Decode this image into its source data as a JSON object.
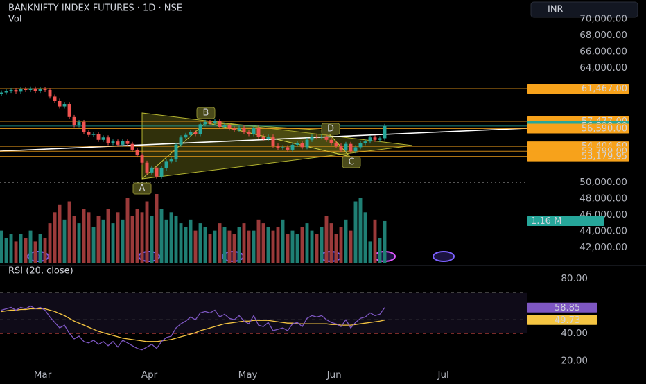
{
  "chart_data": {
    "type": "candlestick",
    "title": "BANKNIFTY INDEX FUTURES · 1D · NSE",
    "volume_title": "Vol",
    "currency": "INR",
    "up_color": "#26a69a",
    "down_color": "#ef5350",
    "xlim": [
      -0.29,
      108.29
    ],
    "xticks": [
      {
        "value": 8.5,
        "label": "Mar"
      },
      {
        "value": 30.5,
        "label": "Apr"
      },
      {
        "value": 50.8,
        "label": "May"
      },
      {
        "value": 68.6,
        "label": "Jun"
      },
      {
        "value": 91.1,
        "label": "Jul"
      }
    ],
    "ylim": [
      40060,
      72345
    ],
    "yticks": [
      {
        "value": 70000,
        "label": "70,000.00"
      },
      {
        "value": 68000,
        "label": "68,000.00"
      },
      {
        "value": 66000,
        "label": "66,000.00"
      },
      {
        "value": 64000,
        "label": "64,000.00"
      },
      {
        "value": 50000,
        "label": "50,000.00"
      },
      {
        "value": 48000,
        "label": "48,000.00"
      },
      {
        "value": 46000,
        "label": "46,000.00"
      },
      {
        "value": 44000,
        "label": "44,000.00"
      },
      {
        "value": 42000,
        "label": "42,000.00"
      }
    ],
    "levels": [
      {
        "value": 61467,
        "label": "61,467.00",
        "color": "#f7a21b"
      },
      {
        "value": 57477,
        "label": "57,477.00",
        "color": "#f7a21b"
      },
      {
        "value": 56898,
        "label": "56,898.00",
        "color": "#26a69a"
      },
      {
        "value": 56590,
        "label": "56,590.00",
        "color": "#f7a21b"
      },
      {
        "value": 54404.6,
        "label": "54,404.60",
        "color": "#f7a21b"
      },
      {
        "value": 53799,
        "label": "53,799.00",
        "color": "#f7a21b"
      },
      {
        "value": 53179.95,
        "label": "53,179.95",
        "color": "#f7a21b"
      }
    ],
    "pattern_labels": [
      "A",
      "B",
      "C",
      "D"
    ],
    "open": [
      60800,
      61000,
      61200,
      61300,
      61100,
      61400,
      61300,
      61500,
      61200,
      61400,
      61300,
      60500,
      60000,
      59300,
      59600,
      58000,
      57000,
      57400,
      56200,
      55800,
      55900,
      55200,
      55500,
      54800,
      55000,
      54600,
      55100,
      54700,
      54000,
      53300,
      52400,
      51200,
      51800,
      50700,
      51700,
      52600,
      52800,
      54600,
      55500,
      55800,
      56200,
      55900,
      57100,
      57400,
      57300,
      57500,
      56800,
      57000,
      56600,
      56400,
      56700,
      56200,
      55900,
      56700,
      55600,
      55300,
      55600,
      54500,
      54200,
      54300,
      54000,
      54600,
      54800,
      54300,
      55200,
      55600,
      55500,
      55600,
      55200,
      54800,
      54500,
      54000,
      54700,
      53800,
      54300,
      54800,
      55000,
      55500,
      55200,
      55400
    ],
    "high": [
      61250,
      61450,
      61550,
      61550,
      61650,
      61650,
      61750,
      61750,
      61650,
      61650,
      61550,
      60750,
      60250,
      59850,
      59850,
      58250,
      57650,
      57650,
      56450,
      56150,
      56150,
      55750,
      55750,
      55250,
      55250,
      55350,
      55350,
      54950,
      54250,
      53550,
      52650,
      52050,
      52050,
      51950,
      52850,
      53050,
      54850,
      55750,
      56050,
      56450,
      56450,
      57350,
      57650,
      57650,
      57750,
      57750,
      57250,
      57250,
      56850,
      56950,
      56950,
      56450,
      56950,
      56950,
      55850,
      55850,
      55850,
      54750,
      54550,
      54550,
      54850,
      55050,
      55050,
      55450,
      55850,
      55850,
      55850,
      55850,
      55450,
      55050,
      54750,
      54950,
      54950,
      54550,
      55050,
      55250,
      55750,
      55750,
      55650,
      57150
    ],
    "low": [
      60550,
      60750,
      60950,
      60850,
      60850,
      61050,
      61050,
      60950,
      60950,
      61050,
      60250,
      59750,
      59050,
      59050,
      57750,
      56750,
      56750,
      55950,
      55550,
      55550,
      54950,
      54950,
      54550,
      54550,
      54350,
      54350,
      54450,
      53750,
      53050,
      52150,
      50950,
      50950,
      50450,
      50450,
      51450,
      52350,
      52550,
      54350,
      55250,
      55550,
      55650,
      55650,
      56850,
      57050,
      57050,
      56550,
      56550,
      56350,
      56150,
      56150,
      55950,
      55650,
      55650,
      55350,
      55050,
      55050,
      54250,
      53950,
      53950,
      53750,
      53750,
      54350,
      54050,
      54050,
      54950,
      55250,
      55250,
      54950,
      54550,
      54250,
      53750,
      53750,
      53550,
      53550,
      54050,
      54550,
      54750,
      54950,
      54950,
      55150
    ],
    "close": [
      61000,
      61200,
      61300,
      61100,
      61400,
      61300,
      61500,
      61200,
      61400,
      61300,
      60500,
      60000,
      59300,
      59600,
      58000,
      57000,
      57400,
      56200,
      55800,
      55900,
      55200,
      55500,
      54800,
      55000,
      54600,
      55100,
      54700,
      54000,
      53300,
      52400,
      51200,
      51800,
      50700,
      51700,
      52600,
      52800,
      54600,
      55500,
      55800,
      56200,
      55900,
      57100,
      57400,
      57300,
      57500,
      56800,
      57000,
      56600,
      56400,
      56700,
      56200,
      55900,
      56700,
      55600,
      55300,
      55600,
      54500,
      54200,
      54300,
      54000,
      54600,
      54800,
      54300,
      55200,
      55600,
      55500,
      55600,
      55200,
      54800,
      54500,
      54000,
      54700,
      53800,
      54300,
      54800,
      55000,
      55500,
      55200,
      55400,
      56898
    ],
    "volume": {
      "vlim": [
        0,
        1.9
      ],
      "last_label": "1.16 M",
      "values": [
        0.9,
        0.7,
        0.8,
        0.6,
        0.8,
        0.7,
        0.9,
        0.6,
        0.8,
        0.7,
        1.1,
        1.4,
        1.6,
        1.2,
        1.7,
        1.3,
        1.1,
        1.5,
        1.4,
        1.0,
        1.3,
        1.2,
        1.5,
        1.1,
        1.4,
        1.2,
        1.8,
        1.3,
        1.5,
        1.4,
        1.7,
        1.3,
        1.9,
        1.5,
        1.2,
        1.4,
        1.3,
        1.1,
        1.0,
        1.2,
        0.9,
        1.1,
        1.0,
        0.8,
        0.9,
        1.1,
        1.0,
        0.9,
        0.8,
        1.0,
        1.1,
        0.9,
        0.9,
        1.2,
        1.1,
        1.0,
        0.9,
        1.0,
        1.2,
        0.8,
        0.9,
        0.8,
        1.0,
        1.1,
        0.9,
        0.8,
        1.0,
        1.3,
        1.1,
        0.8,
        1.0,
        1.2,
        0.9,
        1.7,
        1.8,
        1.4,
        0.6,
        1.2,
        0.7,
        1.16
      ]
    },
    "rsi": {
      "title": "RSI (20, close)",
      "color": "#7e57c2",
      "ma_color": "#f5c542",
      "ylim": [
        10.1,
        85.1
      ],
      "yticks": [
        {
          "value": 80,
          "label": "80.00"
        },
        {
          "value": 40,
          "label": "40.00"
        },
        {
          "value": 20,
          "label": "20.00"
        }
      ],
      "bands": [
        70,
        50,
        40
      ],
      "values": [
        57,
        58,
        59,
        57,
        59,
        58,
        60,
        58,
        59,
        57,
        52,
        48,
        44,
        46,
        40,
        36,
        38,
        34,
        33,
        35,
        32,
        34,
        31,
        34,
        30,
        35,
        33,
        31,
        29,
        28,
        30,
        32,
        29,
        34,
        37,
        38,
        44,
        47,
        49,
        52,
        50,
        55,
        56,
        55,
        57,
        52,
        54,
        51,
        50,
        53,
        49,
        47,
        53,
        46,
        45,
        48,
        42,
        43,
        44,
        42,
        47,
        48,
        45,
        51,
        53,
        52,
        53,
        50,
        48,
        47,
        45,
        50,
        44,
        48,
        51,
        52,
        55,
        53,
        54,
        58.85
      ],
      "ma": [
        56,
        56.5,
        57,
        57,
        57.5,
        57.5,
        58,
        58,
        58,
        58,
        57,
        56,
        54.5,
        53,
        51,
        49,
        47.5,
        46,
        44.5,
        43,
        41.5,
        40.5,
        39.5,
        38.5,
        37.5,
        36.5,
        36,
        35.5,
        35,
        34.5,
        34,
        34,
        34,
        34.5,
        35,
        35.5,
        36.5,
        37.5,
        38.5,
        39.5,
        40.5,
        42,
        43,
        44,
        45,
        46,
        47,
        47.5,
        48,
        48.5,
        49,
        49,
        49.5,
        49.5,
        49.5,
        49.5,
        49,
        48.5,
        48,
        47.5,
        47.5,
        47,
        47,
        47,
        47,
        47,
        47,
        47,
        46.5,
        46.5,
        46,
        46,
        46,
        46.5,
        47,
        47.5,
        48,
        48.5,
        49,
        49.73
      ]
    }
  }
}
